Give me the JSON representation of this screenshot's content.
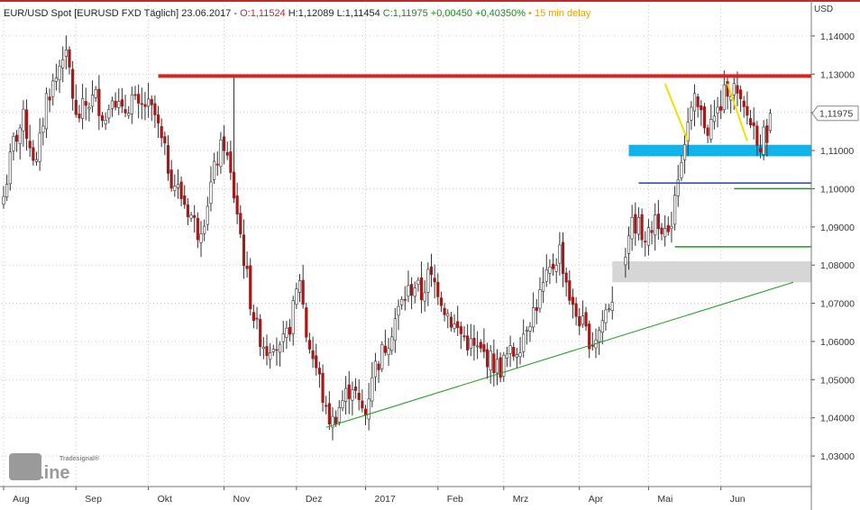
{
  "header": {
    "instrument": "EUR/USD Spot [EURUSD FXD Täglich]",
    "date": "23.06.2017",
    "sep": "-",
    "open": "O:1,11524",
    "high": "H:1,12089",
    "low": "L:1,11454",
    "close": "C:1,11975",
    "change_abs": "+0,00450",
    "change_pct": "+0,40350%",
    "delay": "15 min delay"
  },
  "logo": {
    "top": "Tradesignal®",
    "main": "onLine"
  },
  "colors": {
    "up_candle": "#ffffff",
    "down_candle": "#a31a1a",
    "wick": "#333333",
    "resistance": "#e02020",
    "trend": "#1f9a1f",
    "support_zone": "#10b4ea",
    "grey_zone": "#d6d6d6",
    "blue_line": "#2040c0",
    "yellow": "#f0e000",
    "grid": "#c8c8c8"
  },
  "chart_data": {
    "type": "candlestick",
    "unit": "USD",
    "ylim": [
      1.022,
      1.148
    ],
    "y_ticks": [
      "1,14000",
      "1,13000",
      "1,12000",
      "1,11000",
      "1,10000",
      "1,09000",
      "1,08000",
      "1,07000",
      "1,06000",
      "1,05000",
      "1,04000",
      "1,03000"
    ],
    "y_tick_values": [
      1.14,
      1.13,
      1.12,
      1.11,
      1.1,
      1.09,
      1.08,
      1.07,
      1.06,
      1.05,
      1.04,
      1.03
    ],
    "x_labels": [
      "Aug",
      "Sep",
      "Okt",
      "Nov",
      "Dez",
      "2017",
      "Feb",
      "Mrz",
      "Apr",
      "Mai",
      "Jun"
    ],
    "x_label_index": [
      0,
      22,
      44,
      67,
      89,
      110,
      132,
      152,
      175,
      196,
      218
    ],
    "last_price_label": "1,11975",
    "last_price": 1.11975,
    "grid": true,
    "ohlc_anchors": [
      [
        0,
        1.098
      ],
      [
        3,
        1.112
      ],
      [
        6,
        1.118
      ],
      [
        10,
        1.106
      ],
      [
        13,
        1.124
      ],
      [
        16,
        1.129
      ],
      [
        18,
        1.136
      ],
      [
        20,
        1.131
      ],
      [
        22,
        1.118
      ],
      [
        25,
        1.122
      ],
      [
        28,
        1.124
      ],
      [
        31,
        1.118
      ],
      [
        33,
        1.126
      ],
      [
        36,
        1.119
      ],
      [
        39,
        1.124
      ],
      [
        41,
        1.12
      ],
      [
        43,
        1.122
      ],
      [
        46,
        1.119
      ],
      [
        48,
        1.112
      ],
      [
        51,
        1.103
      ],
      [
        54,
        1.098
      ],
      [
        57,
        1.093
      ],
      [
        59,
        1.089
      ],
      [
        61,
        1.093
      ],
      [
        63,
        1.101
      ],
      [
        65,
        1.108
      ],
      [
        67,
        1.112
      ],
      [
        69,
        1.103
      ],
      [
        71,
        1.094
      ],
      [
        73,
        1.082
      ],
      [
        75,
        1.071
      ],
      [
        77,
        1.063
      ],
      [
        80,
        1.058
      ],
      [
        82,
        1.061
      ],
      [
        84,
        1.057
      ],
      [
        86,
        1.061
      ],
      [
        88,
        1.068
      ],
      [
        90,
        1.077
      ],
      [
        92,
        1.062
      ],
      [
        94,
        1.056
      ],
      [
        96,
        1.05
      ],
      [
        98,
        1.041
      ],
      [
        100,
        1.039
      ],
      [
        102,
        1.043
      ],
      [
        104,
        1.046
      ],
      [
        106,
        1.049
      ],
      [
        108,
        1.043
      ],
      [
        110,
        1.041
      ],
      [
        112,
        1.052
      ],
      [
        114,
        1.055
      ],
      [
        117,
        1.061
      ],
      [
        119,
        1.066
      ],
      [
        122,
        1.072
      ],
      [
        125,
        1.075
      ],
      [
        127,
        1.072
      ],
      [
        129,
        1.077
      ],
      [
        132,
        1.074
      ],
      [
        134,
        1.069
      ],
      [
        137,
        1.064
      ],
      [
        139,
        1.062
      ],
      [
        141,
        1.06
      ],
      [
        143,
        1.058
      ],
      [
        145,
        1.057
      ],
      [
        147,
        1.056
      ],
      [
        149,
        1.054
      ],
      [
        151,
        1.053
      ],
      [
        153,
        1.056
      ],
      [
        155,
        1.057
      ],
      [
        157,
        1.06
      ],
      [
        159,
        1.065
      ],
      [
        161,
        1.068
      ],
      [
        163,
        1.072
      ],
      [
        165,
        1.076
      ],
      [
        167,
        1.08
      ],
      [
        169,
        1.084
      ],
      [
        171,
        1.076
      ],
      [
        173,
        1.068
      ],
      [
        175,
        1.066
      ],
      [
        177,
        1.062
      ],
      [
        179,
        1.06
      ],
      [
        181,
        1.063
      ],
      [
        183,
        1.068
      ],
      [
        185,
        1.072
      ],
      [
        187,
        1.074
      ],
      [
        190,
        1.089
      ],
      [
        192,
        1.091
      ],
      [
        194,
        1.089
      ],
      [
        196,
        1.087
      ],
      [
        198,
        1.093
      ],
      [
        200,
        1.091
      ],
      [
        202,
        1.086
      ],
      [
        204,
        1.099
      ],
      [
        206,
        1.109
      ],
      [
        208,
        1.117
      ],
      [
        210,
        1.122
      ],
      [
        212,
        1.119
      ],
      [
        214,
        1.116
      ],
      [
        216,
        1.118
      ],
      [
        218,
        1.122
      ],
      [
        220,
        1.127
      ],
      [
        222,
        1.126
      ],
      [
        224,
        1.121
      ],
      [
        226,
        1.119
      ],
      [
        228,
        1.116
      ],
      [
        230,
        1.112
      ],
      [
        232,
        1.115
      ],
      [
        233,
        1.11975
      ]
    ],
    "gap_bars": [
      186,
      187,
      188
    ],
    "resistance_line": {
      "price": 1.1295
    },
    "support_zone": {
      "from": 1.1085,
      "to": 1.1115,
      "start_bar": 190
    },
    "blue_level": {
      "price": 1.1015,
      "start_bar": 193
    },
    "green_levels": [
      {
        "price": 1.1,
        "start_bar": 222
      },
      {
        "price": 1.0848,
        "start_bar": 204
      }
    ],
    "grey_zone": {
      "from": 1.0755,
      "to": 1.081,
      "start_bar": 185
    },
    "trendline": {
      "from": [
        98,
        1.0375
      ],
      "to": [
        240,
        1.0755
      ]
    },
    "nov_spike": {
      "bar": 70,
      "high": 1.1298
    },
    "yellow_lines": [
      {
        "from": [
          201,
          1.1275
        ],
        "to": [
          208,
          1.1125
        ]
      },
      {
        "from": [
          220,
          1.1275
        ],
        "to": [
          226,
          1.1125
        ]
      }
    ]
  }
}
